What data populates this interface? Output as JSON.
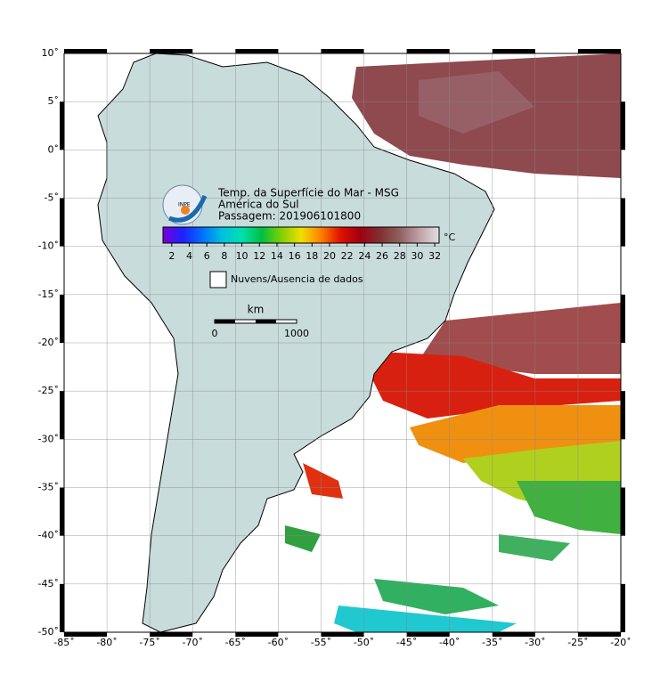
{
  "map": {
    "title": "Temp. da Superfície do Mar - MSG",
    "subtitle": "América do Sul",
    "pass": "Passagem: 201906101800",
    "logo_text": "INPE",
    "lonlim": [
      -85,
      -20
    ],
    "latlim": [
      -50,
      10
    ],
    "lonticks": [
      {
        "value": -85,
        "label": "-85˚"
      },
      {
        "value": -80,
        "label": "-80˚"
      },
      {
        "value": -75,
        "label": "-75˚"
      },
      {
        "value": -70,
        "label": "-70˚"
      },
      {
        "value": -65,
        "label": "-65˚"
      },
      {
        "value": -60,
        "label": "-60˚"
      },
      {
        "value": -55,
        "label": "-55˚"
      },
      {
        "value": -50,
        "label": "-50˚"
      },
      {
        "value": -45,
        "label": "-45˚"
      },
      {
        "value": -40,
        "label": "-40˚"
      },
      {
        "value": -35,
        "label": "-35˚"
      },
      {
        "value": -30,
        "label": "-30˚"
      },
      {
        "value": -25,
        "label": "-25˚"
      },
      {
        "value": -20,
        "label": "-20˚"
      }
    ],
    "latticks": [
      {
        "value": 10,
        "label": "10˚"
      },
      {
        "value": 5,
        "label": "5˚"
      },
      {
        "value": 0,
        "label": "0˚"
      },
      {
        "value": -5,
        "label": "-5˚"
      },
      {
        "value": -10,
        "label": "-10˚"
      },
      {
        "value": -15,
        "label": "-15˚"
      },
      {
        "value": -20,
        "label": "-20˚"
      },
      {
        "value": -25,
        "label": "-25˚"
      },
      {
        "value": -30,
        "label": "-30˚"
      },
      {
        "value": -35,
        "label": "-35˚"
      },
      {
        "value": -40,
        "label": "-40˚"
      },
      {
        "value": -45,
        "label": "-45˚"
      },
      {
        "value": -50,
        "label": "-50˚"
      }
    ],
    "colorbar": {
      "lim": [
        1,
        32.5
      ],
      "ticks": [
        2,
        4,
        6,
        8,
        10,
        12,
        14,
        16,
        18,
        20,
        22,
        24,
        26,
        28,
        30,
        32
      ],
      "unit": "°C",
      "colors": [
        "#7a00d8",
        "#2020ff",
        "#0070ff",
        "#00c0e0",
        "#00e0b0",
        "#00c040",
        "#80d000",
        "#f0e000",
        "#ff8000",
        "#e01000",
        "#a00010",
        "#803030",
        "#906060",
        "#c0a0a8",
        "#e0e0e0"
      ]
    },
    "legend": "Nuvens/Ausencia de dados",
    "scale": {
      "title": "km",
      "start": "0",
      "end": "1000"
    }
  }
}
